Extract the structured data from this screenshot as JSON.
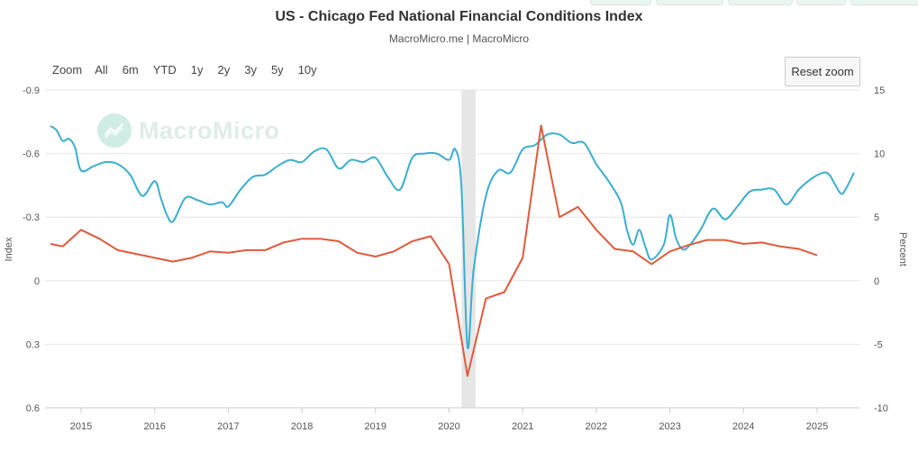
{
  "page": {
    "title": "US - Chicago Fed National Financial Conditions Index",
    "subtitle": "MacroMicro.me | MacroMicro",
    "watermark": "MacroMicro",
    "colors": {
      "nfci": "#3aaed0",
      "rate": "#e05a3c",
      "recession": "#e6e6e6",
      "grid": "#e6e6e6"
    },
    "icons": {
      "logo": "macromicro-chart-logo-icon"
    }
  },
  "range_selector": {
    "label": "Zoom",
    "buttons": [
      "All",
      "6m",
      "YTD",
      "1y",
      "2y",
      "3y",
      "5y",
      "10y"
    ]
  },
  "reset_zoom": {
    "label": "Reset zoom"
  },
  "chart_data": {
    "type": "line",
    "x_ticks": [
      "2015",
      "2016",
      "2017",
      "2018",
      "2019",
      "2020",
      "2021",
      "2022",
      "2023",
      "2024",
      "2025"
    ],
    "left_axis": {
      "label": "Index",
      "range": [
        0.6,
        -0.9
      ],
      "reversed": true,
      "ticks": [
        "-0.9",
        "-0.6",
        "-0.3",
        "0",
        "0.3",
        "0.6"
      ]
    },
    "right_axis": {
      "label": "Percent",
      "range": [
        -10,
        15
      ],
      "ticks": [
        "15",
        "10",
        "5",
        "0",
        "-5",
        "-10"
      ]
    },
    "shaded_period": {
      "start": "2020-02",
      "end": "2020-04"
    },
    "grid": true,
    "series": [
      {
        "axis": "left",
        "color": "#3aaed0",
        "points": [
          [
            "2014-08",
            -0.73
          ],
          [
            "2014-09",
            -0.71
          ],
          [
            "2014-10",
            -0.66
          ],
          [
            "2014-11",
            -0.67
          ],
          [
            "2014-12",
            -0.63
          ],
          [
            "2015-01",
            -0.52
          ],
          [
            "2015-03",
            -0.54
          ],
          [
            "2015-05",
            -0.56
          ],
          [
            "2015-07",
            -0.55
          ],
          [
            "2015-09",
            -0.5
          ],
          [
            "2015-11",
            -0.4
          ],
          [
            "2016-01",
            -0.47
          ],
          [
            "2016-02",
            -0.39
          ],
          [
            "2016-03",
            -0.31
          ],
          [
            "2016-04",
            -0.28
          ],
          [
            "2016-06",
            -0.39
          ],
          [
            "2016-08",
            -0.38
          ],
          [
            "2016-10",
            -0.36
          ],
          [
            "2016-12",
            -0.37
          ],
          [
            "2017-01",
            -0.35
          ],
          [
            "2017-03",
            -0.43
          ],
          [
            "2017-05",
            -0.49
          ],
          [
            "2017-07",
            -0.5
          ],
          [
            "2017-09",
            -0.54
          ],
          [
            "2017-11",
            -0.57
          ],
          [
            "2018-01",
            -0.56
          ],
          [
            "2018-03",
            -0.61
          ],
          [
            "2018-05",
            -0.62
          ],
          [
            "2018-07",
            -0.53
          ],
          [
            "2018-09",
            -0.57
          ],
          [
            "2018-11",
            -0.56
          ],
          [
            "2019-01",
            -0.58
          ],
          [
            "2019-03",
            -0.49
          ],
          [
            "2019-05",
            -0.43
          ],
          [
            "2019-07",
            -0.58
          ],
          [
            "2019-09",
            -0.6
          ],
          [
            "2019-11",
            -0.6
          ],
          [
            "2020-01",
            -0.57
          ],
          [
            "2020-02",
            -0.62
          ],
          [
            "2020-03",
            -0.45
          ],
          [
            "2020-04",
            0.31
          ],
          [
            "2020-05",
            -0.05
          ],
          [
            "2020-07",
            -0.4
          ],
          [
            "2020-09",
            -0.52
          ],
          [
            "2020-11",
            -0.51
          ],
          [
            "2021-01",
            -0.62
          ],
          [
            "2021-03",
            -0.64
          ],
          [
            "2021-05",
            -0.69
          ],
          [
            "2021-07",
            -0.69
          ],
          [
            "2021-09",
            -0.65
          ],
          [
            "2021-11",
            -0.65
          ],
          [
            "2022-01",
            -0.55
          ],
          [
            "2022-03",
            -0.47
          ],
          [
            "2022-05",
            -0.37
          ],
          [
            "2022-06",
            -0.24
          ],
          [
            "2022-07",
            -0.17
          ],
          [
            "2022-08",
            -0.24
          ],
          [
            "2022-09",
            -0.16
          ],
          [
            "2022-10",
            -0.1
          ],
          [
            "2022-12",
            -0.17
          ],
          [
            "2023-01",
            -0.31
          ],
          [
            "2023-02",
            -0.2
          ],
          [
            "2023-03",
            -0.15
          ],
          [
            "2023-04",
            -0.16
          ],
          [
            "2023-06",
            -0.24
          ],
          [
            "2023-08",
            -0.34
          ],
          [
            "2023-10",
            -0.29
          ],
          [
            "2023-12",
            -0.35
          ],
          [
            "2024-02",
            -0.42
          ],
          [
            "2024-04",
            -0.43
          ],
          [
            "2024-06",
            -0.43
          ],
          [
            "2024-08",
            -0.36
          ],
          [
            "2024-10",
            -0.43
          ],
          [
            "2024-12",
            -0.48
          ],
          [
            "2025-02",
            -0.51
          ],
          [
            "2025-03",
            -0.5
          ],
          [
            "2025-04",
            -0.45
          ],
          [
            "2025-05",
            -0.41
          ],
          [
            "2025-06",
            -0.45
          ],
          [
            "2025-07",
            -0.51
          ]
        ]
      },
      {
        "axis": "right",
        "color": "#e05a3c",
        "points": [
          [
            "2014-08",
            2.9
          ],
          [
            "2014-10",
            2.7
          ],
          [
            "2015-01",
            4.0
          ],
          [
            "2015-04",
            3.3
          ],
          [
            "2015-07",
            2.4
          ],
          [
            "2016-01",
            1.8
          ],
          [
            "2016-04",
            1.5
          ],
          [
            "2016-07",
            1.8
          ],
          [
            "2016-10",
            2.3
          ],
          [
            "2017-01",
            2.2
          ],
          [
            "2017-04",
            2.4
          ],
          [
            "2017-07",
            2.4
          ],
          [
            "2017-10",
            3.0
          ],
          [
            "2018-01",
            3.3
          ],
          [
            "2018-04",
            3.3
          ],
          [
            "2018-07",
            3.1
          ],
          [
            "2018-10",
            2.2
          ],
          [
            "2019-01",
            1.9
          ],
          [
            "2019-04",
            2.3
          ],
          [
            "2019-07",
            3.1
          ],
          [
            "2019-10",
            3.5
          ],
          [
            "2020-01",
            1.3
          ],
          [
            "2020-04",
            -7.5
          ],
          [
            "2020-07",
            -1.4
          ],
          [
            "2020-10",
            -0.9
          ],
          [
            "2021-01",
            1.8
          ],
          [
            "2021-04",
            12.2
          ],
          [
            "2021-07",
            5.0
          ],
          [
            "2021-10",
            5.8
          ],
          [
            "2022-01",
            4.0
          ],
          [
            "2022-04",
            2.5
          ],
          [
            "2022-07",
            2.3
          ],
          [
            "2022-10",
            1.3
          ],
          [
            "2023-01",
            2.3
          ],
          [
            "2023-04",
            2.8
          ],
          [
            "2023-07",
            3.2
          ],
          [
            "2023-10",
            3.2
          ],
          [
            "2024-01",
            2.9
          ],
          [
            "2024-04",
            3.0
          ],
          [
            "2024-07",
            2.7
          ],
          [
            "2024-10",
            2.5
          ],
          [
            "2025-01",
            2.0
          ]
        ]
      }
    ]
  }
}
